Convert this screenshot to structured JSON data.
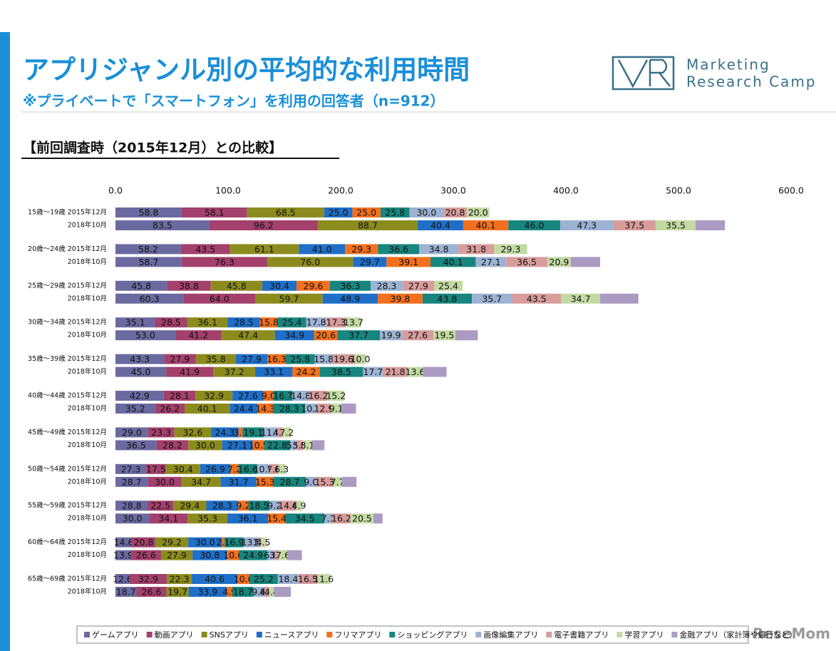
{
  "branding": {
    "logo_line1": "Marketing",
    "logo_line2": "Research Camp",
    "watermark": "ReseMom"
  },
  "chart_data": {
    "type": "stacked-barh",
    "title": "アプリジャンル別の平均的な利用時間",
    "subtitle": "※プライベートで「スマートフォン」を利用の回答者（n=912）",
    "heading": "【前回調査時（2015年12月）との比較】",
    "categories": [
      "15歳～19歳 2015年12月",
      "2018年10月",
      "20歳～24歳 2015年12月",
      "2018年10月",
      "25歳～29歳 2015年12月",
      "2018年10月",
      "30歳～34歳 2015年12月",
      "2018年10月",
      "35歳～39歳 2015年12月",
      "2018年10月",
      "40歳～44歳 2015年12月",
      "2018年10月",
      "45歳～49歳 2015年12月",
      "2018年10月",
      "50歳～54歳 2015年12月",
      "2018年10月",
      "55歳～59歳 2015年12月",
      "2018年10月",
      "60歳～64歳 2015年12月",
      "2018年10月",
      "65歳～69歳 2015年12月",
      "2018年10月"
    ],
    "xlim": [
      0,
      600
    ],
    "xticks": [
      {
        "value": 0,
        "label": "0.0"
      },
      {
        "value": 100,
        "label": "100.0"
      },
      {
        "value": 200,
        "label": "200.0"
      },
      {
        "value": 300,
        "label": "300.0"
      },
      {
        "value": 400,
        "label": "400.0"
      },
      {
        "value": 500,
        "label": "500.0"
      },
      {
        "value": 600,
        "label": "600.0"
      }
    ],
    "grid": false,
    "series": [
      {
        "name": "ゲームアプリ",
        "color": "#6b6aa0",
        "values": [
          58.8,
          83.5,
          58.2,
          58.7,
          45.8,
          60.3,
          35.1,
          53.0,
          43.3,
          45.0,
          42.9,
          35.2,
          29.0,
          36.5,
          27.3,
          28.7,
          28.8,
          30.0,
          14.6,
          13.9,
          12.6,
          18.7
        ],
        "value_labels": [
          "58.8",
          "83.5",
          "58.2",
          "58.7",
          "45.8",
          "60.3",
          "35.1",
          "53.0",
          "43.3",
          "45.0",
          "42.9",
          "35.2",
          "29.0",
          "36.5",
          "27.3",
          "28.7",
          "28.8",
          "30.0",
          "14.6",
          "13.9",
          "12.6",
          "18.7"
        ]
      },
      {
        "name": "動画アプリ",
        "color": "#a3406c",
        "values": [
          58.1,
          96.2,
          43.5,
          76.3,
          38.8,
          64.0,
          28.5,
          41.2,
          27.9,
          41.9,
          28.1,
          26.2,
          23.3,
          28.2,
          17.5,
          30.0,
          22.5,
          34.1,
          20.8,
          26.6,
          32.9,
          26.6
        ],
        "value_labels": [
          "58.1",
          "96.2",
          "43.5",
          "76.3",
          "38.8",
          "64.0",
          "28.5",
          "41.2",
          "27.9",
          "41.9",
          "28.1",
          "26.2",
          "23.3",
          "28.2",
          "17.5",
          "30.0",
          "22.5",
          "34.1",
          "20.8",
          "26.6",
          "32.9",
          "26.6"
        ]
      },
      {
        "name": "SNSアプリ",
        "color": "#8c8c1e",
        "values": [
          68.5,
          88.7,
          61.1,
          76.0,
          45.8,
          59.7,
          36.1,
          47.4,
          35.8,
          37.2,
          32.9,
          40.1,
          32.6,
          30.0,
          30.4,
          34.7,
          29.4,
          35.3,
          29.2,
          27.9,
          22.3,
          19.7
        ],
        "value_labels": [
          "68.5",
          "88.7",
          "61.1",
          "76.0",
          "45.8",
          "59.7",
          "36.1",
          "47.4",
          "35.8",
          "37.2",
          "32.9",
          "40.1",
          "32.6",
          "30.0",
          "30.4",
          "34.7",
          "29.4",
          "35.3",
          "29.2",
          "27.9",
          "22.3",
          "19.7"
        ]
      },
      {
        "name": "ニュースアプリ",
        "color": "#1f6fc8",
        "values": [
          25.0,
          40.4,
          41.0,
          29.7,
          30.4,
          48.9,
          28.5,
          34.9,
          27.9,
          33.1,
          27.6,
          24.4,
          24.3,
          27.1,
          26.9,
          31.7,
          28.3,
          36.1,
          30.0,
          30.8,
          40.6,
          33.9
        ],
        "value_labels": [
          "25.0",
          "40.4",
          "41.0",
          "29.7",
          "30.4",
          "48.9",
          "28.5",
          "34.9",
          "27.9",
          "33.1",
          "27.6",
          "24.4",
          "24.3",
          "27.1",
          "26.9",
          "31.7",
          "28.3",
          "36.1",
          "30.0",
          "30.8",
          "40.6",
          "33.9"
        ]
      },
      {
        "name": "フリマアプリ",
        "color": "#f2701e",
        "values": [
          25.0,
          40.1,
          29.3,
          39.1,
          29.6,
          39.8,
          15.8,
          20.6,
          16.3,
          24.2,
          9.0,
          14.3,
          3.6,
          10.5,
          7.2,
          15.3,
          9.2,
          15.4,
          2.3,
          10.6,
          10.6,
          4.9
        ],
        "value_labels": [
          "25.0",
          "40.1",
          "29.3",
          "39.1",
          "29.6",
          "39.8",
          "15.8",
          "20.6",
          "16.3",
          "24.2",
          "9.0",
          "14.3",
          "3.6",
          "10.5",
          "7.2",
          "15.3",
          "9.2",
          "15.4",
          "2.3",
          "10.6",
          "10.6",
          "4.9"
        ]
      },
      {
        "name": "ショッピングアプリ",
        "color": "#17867e",
        "values": [
          25.8,
          46.0,
          36.6,
          40.1,
          36.3,
          43.8,
          25.4,
          37.7,
          25.8,
          38.5,
          16.7,
          28.3,
          19.1,
          22.8,
          16.6,
          28.7,
          18.5,
          34.5,
          16.9,
          24.9,
          25.2,
          18.7
        ],
        "value_labels": [
          "25.8",
          "46.0",
          "36.6",
          "40.1",
          "36.3",
          "43.8",
          "25.4",
          "37.7",
          "25.8",
          "38.5",
          "16.7",
          "28.3",
          "19.1",
          "22.8",
          "16.6",
          "28.7",
          "18.5",
          "34.5",
          "16.9",
          "24.9",
          "25.2",
          "18.7"
        ]
      },
      {
        "name": "画像編集アプリ",
        "color": "#9db3d4",
        "values": [
          30.0,
          47.3,
          34.8,
          27.1,
          28.3,
          35.7,
          17.8,
          19.9,
          15.8,
          17.7,
          14.8,
          10.1,
          11.9,
          5.9,
          10.9,
          9.0,
          9.2,
          7.1,
          13.5,
          6.8,
          18.4,
          9.8
        ],
        "value_labels": [
          "30.0",
          "47.3",
          "34.8",
          "27.1",
          "28.3",
          "35.7",
          "17.8",
          "19.9",
          "15.8",
          "17.7",
          "14.8",
          "10.1",
          "11.9",
          "5.9",
          "10.9",
          "9.0",
          "9.2",
          "7.1",
          "13.5",
          "6.8",
          "18.4",
          "9.8"
        ]
      },
      {
        "name": "電子書籍アプリ",
        "color": "#d89c9c",
        "values": [
          20.8,
          37.5,
          31.8,
          36.5,
          27.9,
          43.5,
          17.3,
          27.6,
          19.6,
          21.8,
          16.2,
          12.9,
          4.7,
          5.5,
          7.6,
          15.3,
          14.6,
          16.2,
          1.8,
          3.5,
          16.5,
          4.0
        ],
        "value_labels": [
          "20.8",
          "37.5",
          "31.8",
          "36.5",
          "27.9",
          "43.5",
          "17.3",
          "27.6",
          "19.6",
          "21.8",
          "16.2",
          "12.9",
          "4.7",
          "5.5",
          "7.6",
          "15.3",
          "14.6",
          "16.2",
          "1.8",
          "3.5",
          "16.5",
          "4.0"
        ]
      },
      {
        "name": "学習アプリ",
        "color": "#c3dba3",
        "values": [
          20.0,
          35.5,
          29.3,
          20.9,
          25.4,
          34.7,
          13.7,
          19.5,
          10.0,
          13.6,
          15.2,
          9.1,
          7.2,
          8.1,
          6.3,
          7.7,
          4.9,
          20.5,
          4.5,
          7.6,
          11.6,
          4.4
        ],
        "value_labels": [
          "20.0",
          "35.5",
          "29.3",
          "20.9",
          "25.4",
          "34.7",
          "13.7",
          "19.5",
          "10.0",
          "13.6",
          "15.2",
          "9.1",
          "7.2",
          "8.1",
          "6.3",
          "7.7",
          "4.9",
          "20.5",
          "4.5",
          "7.6",
          "11.6",
          "4.4"
        ]
      },
      {
        "name": "金融アプリ（家計簿や銀行など）",
        "color": "#ab9bc3",
        "values": [
          null,
          26,
          null,
          26,
          null,
          34,
          null,
          20,
          null,
          21,
          null,
          13,
          null,
          11,
          null,
          13,
          null,
          8,
          null,
          13,
          null,
          15
        ]
      }
    ]
  }
}
